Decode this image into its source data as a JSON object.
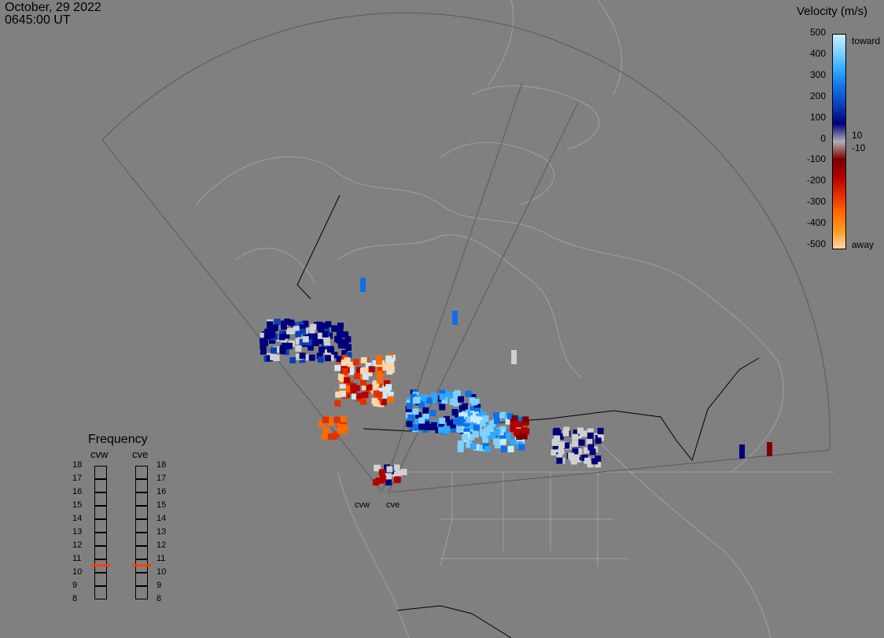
{
  "header": {
    "date": "October, 29 2022",
    "time": "0645:00 UT"
  },
  "colorbar": {
    "title": "Velocity (m/s)",
    "ticks": [
      "500",
      "400",
      "300",
      "200",
      "100",
      "0",
      "-100",
      "-200",
      "-300",
      "-400",
      "-500"
    ],
    "toward_label": "toward",
    "away_label": "away",
    "pos_label": "10",
    "neg_label": "-10",
    "colors": [
      "#c8ecff",
      "#7fd2ff",
      "#30a8ff",
      "#0e6fe8",
      "#0a3fb8",
      "#00007a",
      "#b0b0b0",
      "#7a0000",
      "#b40000",
      "#e23000",
      "#ff6a00",
      "#ff9a20",
      "#ffd6a8"
    ]
  },
  "frequency": {
    "title": "Frequency",
    "radars": [
      {
        "name": "cvw",
        "selected": 11
      },
      {
        "name": "cve",
        "selected": 11
      }
    ],
    "levels": [
      "18",
      "17",
      "16",
      "15",
      "14",
      "13",
      "12",
      "11",
      "10",
      "9",
      "8"
    ]
  },
  "sites": [
    "cvw",
    "cve"
  ]
}
